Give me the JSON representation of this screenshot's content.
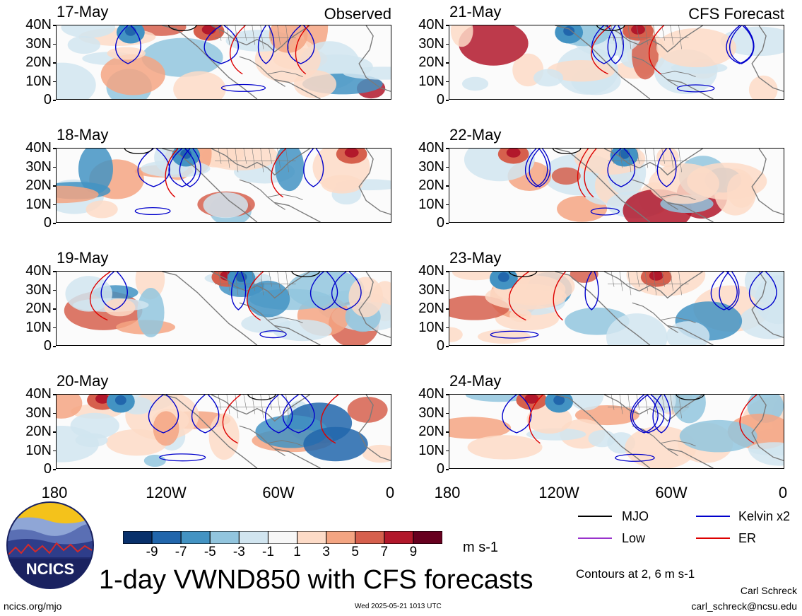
{
  "left_tag": "Observed",
  "right_tag": "CFS Forecast",
  "left_dates": [
    "17-May",
    "18-May",
    "19-May",
    "20-May"
  ],
  "right_dates": [
    "21-May",
    "22-May",
    "23-May",
    "24-May"
  ],
  "y_labels": [
    "40N",
    "30N",
    "20N",
    "10N",
    "0"
  ],
  "x_labels": [
    "180",
    "120W",
    "60W",
    "0"
  ],
  "colorbar": {
    "colors": [
      "#08306b",
      "#2166ac",
      "#4393c3",
      "#92c5de",
      "#d1e5f0",
      "#f7f7f7",
      "#fddbc7",
      "#f4a582",
      "#d6604d",
      "#b2182b",
      "#67001f"
    ],
    "labels": [
      "-9",
      "-7",
      "-5",
      "-3",
      "-1",
      "1",
      "3",
      "5",
      "7",
      "9"
    ],
    "units": "m s-1"
  },
  "legend": {
    "mjo": {
      "label": "MJO",
      "color": "#000000"
    },
    "kelvin": {
      "label": "Kelvin x2",
      "color": "#0000cc"
    },
    "low": {
      "label": "Low",
      "color": "#9933cc"
    },
    "er": {
      "label": "ER",
      "color": "#dd0000"
    }
  },
  "contour_note": "Contours at 2, 6 m s-1",
  "title": "1-day VWND850 with CFS forecasts",
  "logo_text": "NCICS",
  "footer": {
    "url": "ncics.org/mjo",
    "timestamp": "Wed 2025-05-21 1013 UTC",
    "author": "Carl Schreck",
    "email": "carl_schreck@ncsu.edu"
  }
}
